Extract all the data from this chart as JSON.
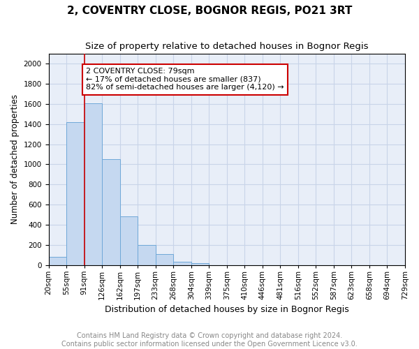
{
  "title": "2, COVENTRY CLOSE, BOGNOR REGIS, PO21 3RT",
  "subtitle": "Size of property relative to detached houses in Bognor Regis",
  "xlabel": "Distribution of detached houses by size in Bognor Regis",
  "ylabel": "Number of detached properties",
  "footer_line1": "Contains HM Land Registry data © Crown copyright and database right 2024.",
  "footer_line2": "Contains public sector information licensed under the Open Government Licence v3.0.",
  "bin_labels": [
    "20sqm",
    "55sqm",
    "91sqm",
    "126sqm",
    "162sqm",
    "197sqm",
    "233sqm",
    "268sqm",
    "304sqm",
    "339sqm",
    "375sqm",
    "410sqm",
    "446sqm",
    "481sqm",
    "516sqm",
    "552sqm",
    "587sqm",
    "623sqm",
    "658sqm",
    "694sqm",
    "729sqm"
  ],
  "bar_values": [
    80,
    1420,
    1610,
    1050,
    480,
    200,
    110,
    35,
    20,
    0,
    0,
    0,
    0,
    0,
    0,
    0,
    0,
    0,
    0,
    0
  ],
  "bar_color": "#c5d8f0",
  "bar_edge_color": "#6fa8d8",
  "property_line_x_label": "91sqm",
  "property_line_color": "#cc0000",
  "annotation_text": "2 COVENTRY CLOSE: 79sqm\n← 17% of detached houses are smaller (837)\n82% of semi-detached houses are larger (4,120) →",
  "annotation_box_edge_color": "#cc0000",
  "annotation_text_color": "#000000",
  "ylim": [
    0,
    2100
  ],
  "background_color": "#ffffff",
  "plot_background": "#e8eef8",
  "grid_color": "#c8d4e8",
  "title_fontsize": 11,
  "subtitle_fontsize": 9.5,
  "label_fontsize": 9,
  "footer_fontsize": 7,
  "tick_label_fontsize": 7.5,
  "ylabel_fontsize": 8.5
}
